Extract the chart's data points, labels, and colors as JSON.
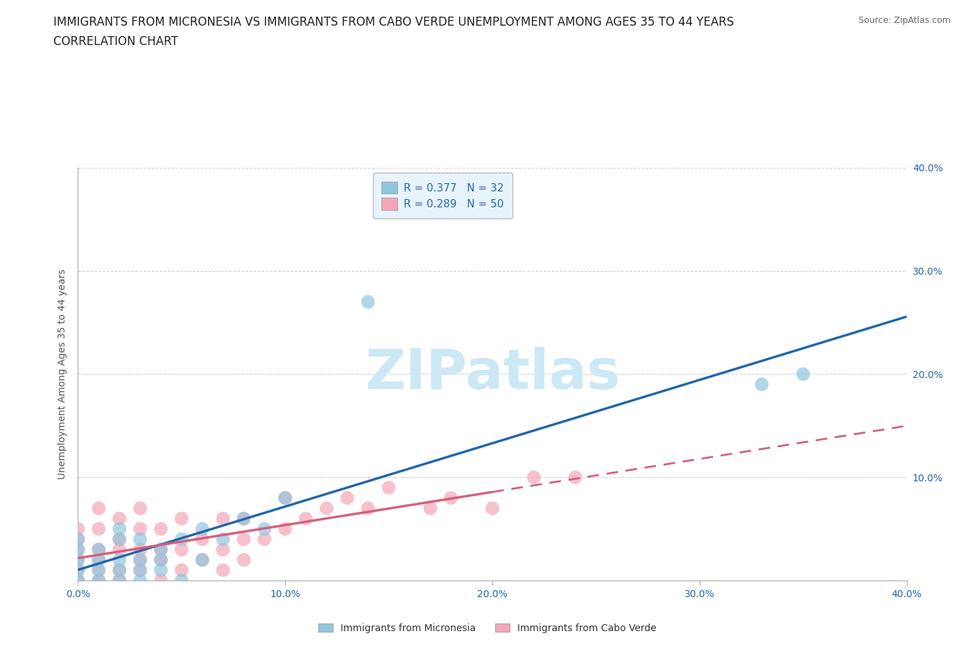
{
  "title_line1": "IMMIGRANTS FROM MICRONESIA VS IMMIGRANTS FROM CABO VERDE UNEMPLOYMENT AMONG AGES 35 TO 44 YEARS",
  "title_line2": "CORRELATION CHART",
  "source_text": "Source: ZipAtlas.com",
  "ylabel": "Unemployment Among Ages 35 to 44 years",
  "xlim": [
    0.0,
    0.4
  ],
  "ylim": [
    0.0,
    0.4
  ],
  "xtick_vals": [
    0.0,
    0.1,
    0.2,
    0.3,
    0.4
  ],
  "xtick_labels": [
    "0.0%",
    "10.0%",
    "20.0%",
    "30.0%",
    "40.0%"
  ],
  "ytick_vals": [
    0.1,
    0.2,
    0.3,
    0.4
  ],
  "ytick_labels": [
    "10.0%",
    "20.0%",
    "30.0%",
    "40.0%"
  ],
  "micronesia_color": "#92c5de",
  "cabo_verde_color": "#f4a6b8",
  "micronesia_line_color": "#2166ac",
  "cabo_verde_line_color": "#d6607a",
  "micronesia_R": 0.377,
  "micronesia_N": 32,
  "cabo_verde_R": 0.289,
  "cabo_verde_N": 50,
  "micronesia_x": [
    0.0,
    0.0,
    0.0,
    0.0,
    0.0,
    0.01,
    0.01,
    0.01,
    0.01,
    0.02,
    0.02,
    0.02,
    0.02,
    0.02,
    0.03,
    0.03,
    0.03,
    0.03,
    0.04,
    0.04,
    0.04,
    0.05,
    0.05,
    0.06,
    0.06,
    0.07,
    0.08,
    0.09,
    0.1,
    0.14,
    0.33,
    0.35
  ],
  "micronesia_y": [
    0.0,
    0.01,
    0.02,
    0.03,
    0.04,
    0.0,
    0.01,
    0.02,
    0.03,
    0.0,
    0.01,
    0.02,
    0.04,
    0.05,
    0.0,
    0.01,
    0.02,
    0.04,
    0.01,
    0.02,
    0.03,
    0.0,
    0.04,
    0.02,
    0.05,
    0.04,
    0.06,
    0.05,
    0.08,
    0.27,
    0.19,
    0.2
  ],
  "cabo_verde_x": [
    0.0,
    0.0,
    0.0,
    0.0,
    0.0,
    0.0,
    0.01,
    0.01,
    0.01,
    0.01,
    0.01,
    0.01,
    0.02,
    0.02,
    0.02,
    0.02,
    0.02,
    0.03,
    0.03,
    0.03,
    0.03,
    0.03,
    0.04,
    0.04,
    0.04,
    0.04,
    0.05,
    0.05,
    0.05,
    0.06,
    0.06,
    0.07,
    0.07,
    0.07,
    0.08,
    0.08,
    0.08,
    0.09,
    0.1,
    0.1,
    0.11,
    0.12,
    0.13,
    0.14,
    0.15,
    0.17,
    0.18,
    0.2,
    0.22,
    0.24
  ],
  "cabo_verde_y": [
    0.0,
    0.01,
    0.02,
    0.03,
    0.04,
    0.05,
    0.0,
    0.01,
    0.02,
    0.03,
    0.05,
    0.07,
    0.0,
    0.01,
    0.03,
    0.04,
    0.06,
    0.01,
    0.02,
    0.03,
    0.05,
    0.07,
    0.0,
    0.02,
    0.03,
    0.05,
    0.01,
    0.03,
    0.06,
    0.02,
    0.04,
    0.01,
    0.03,
    0.06,
    0.02,
    0.04,
    0.06,
    0.04,
    0.05,
    0.08,
    0.06,
    0.07,
    0.08,
    0.07,
    0.09,
    0.07,
    0.08,
    0.07,
    0.1,
    0.1
  ],
  "watermark_text": "ZIPatlas",
  "watermark_color": "#cde8f5",
  "background_color": "#ffffff",
  "grid_color": "#cccccc",
  "legend_box_color": "#e8f4fb",
  "title_color": "#222222",
  "tick_color": "#2166ac",
  "title_fontsize": 12,
  "axis_label_fontsize": 10,
  "tick_fontsize": 10,
  "legend_fontsize": 11
}
